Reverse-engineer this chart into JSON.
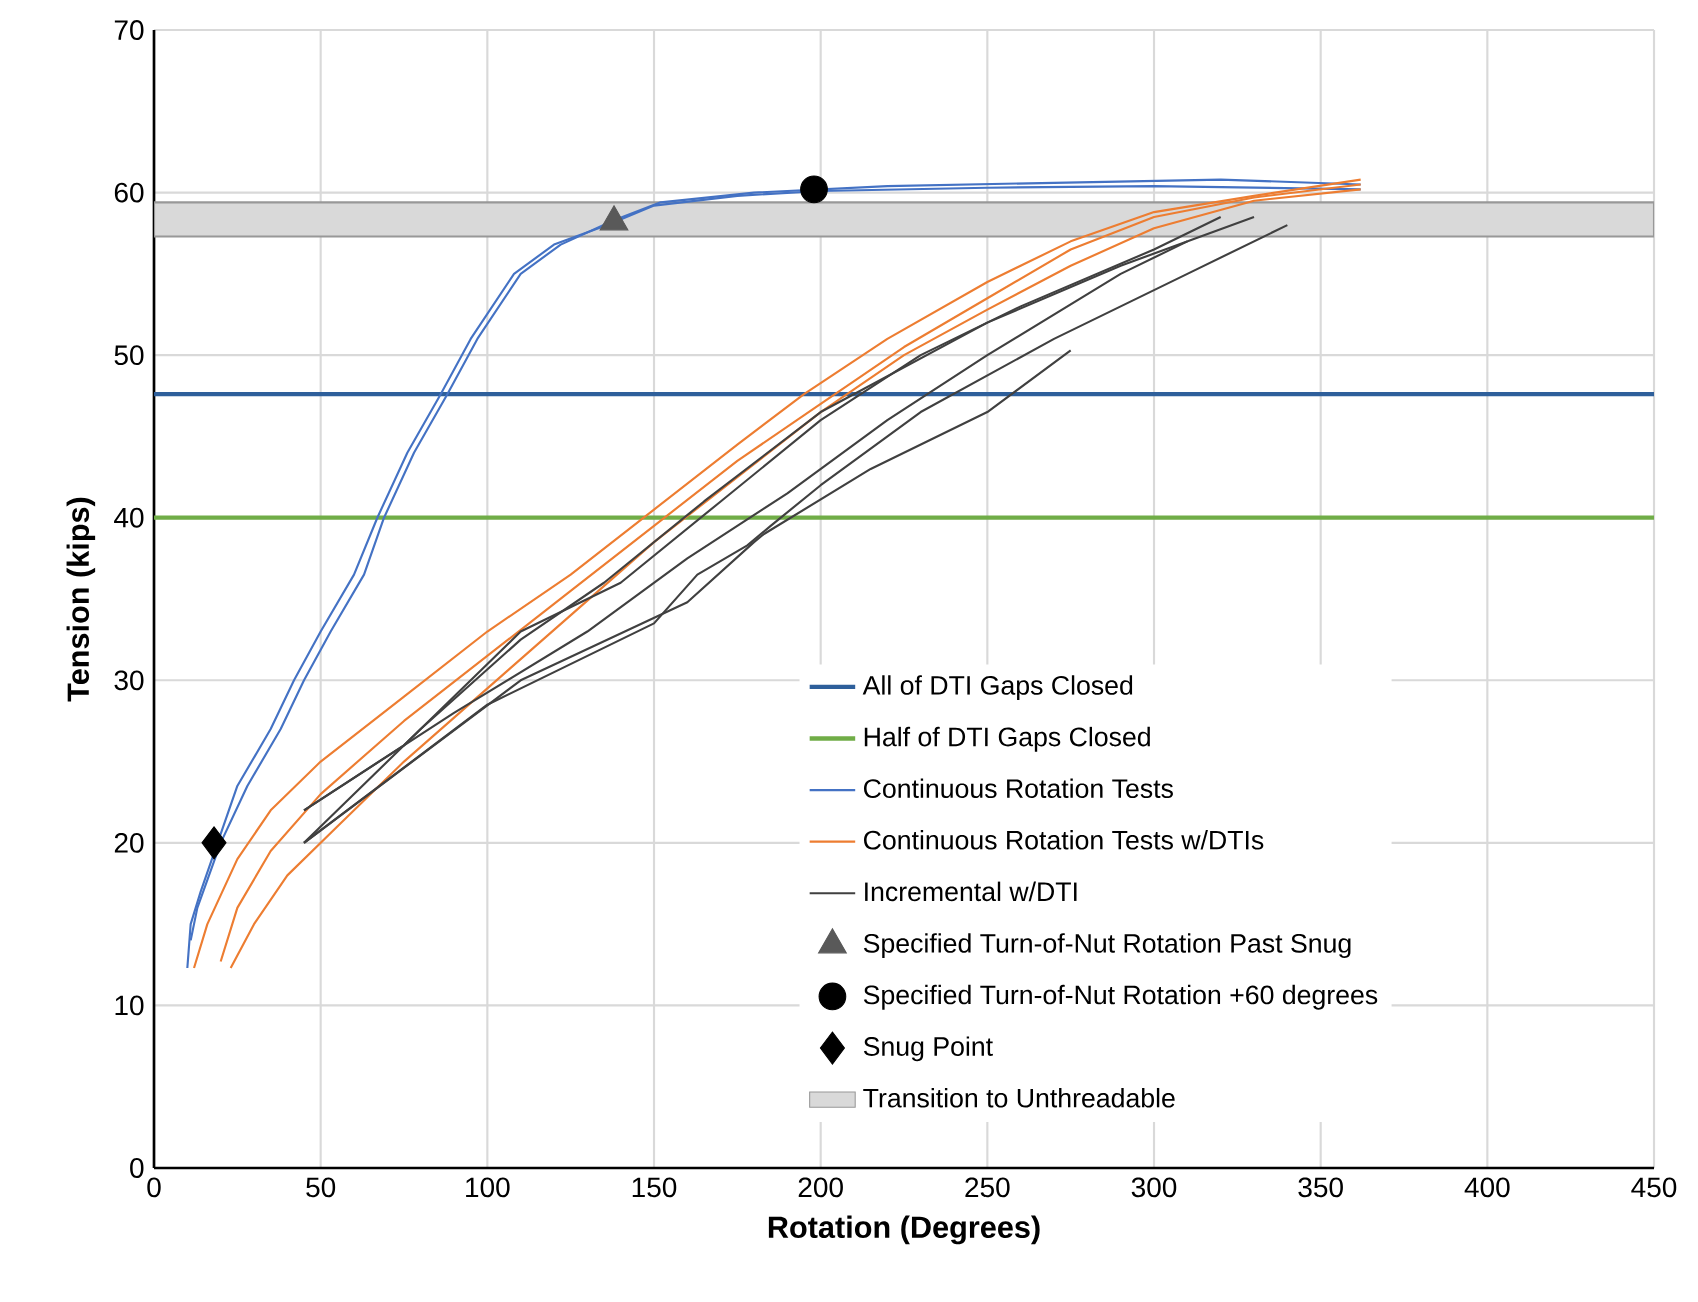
{
  "chart_data": {
    "type": "line",
    "xlabel": "Rotation (Degrees)",
    "ylabel": "Tension (kips)",
    "xlim": [
      0,
      450
    ],
    "ylim": [
      0,
      70
    ],
    "xticks": [
      0,
      50,
      100,
      150,
      200,
      250,
      300,
      350,
      400,
      450
    ],
    "yticks": [
      0,
      10,
      20,
      30,
      40,
      50,
      60,
      70
    ],
    "grid": true,
    "legend": "bottom right",
    "marker": "none",
    "ref_lines": [
      {
        "axis": "y",
        "value": 47.6,
        "label": "All of DTI Gaps Closed",
        "color": "#2e5f9b"
      },
      {
        "axis": "y",
        "value": 40,
        "label": "Half of DTI Gaps Closed",
        "color": "#70ad47"
      }
    ],
    "series": [
      {
        "name": "Continuous Rotation Tests",
        "color": "#4472c4",
        "x": [
          10,
          11,
          14,
          25,
          35,
          42,
          50,
          60,
          67,
          76,
          86,
          95,
          108,
          120,
          136,
          150,
          175,
          200,
          250,
          300,
          362
        ],
        "values": [
          12.3,
          15,
          17,
          23.5,
          27,
          30,
          33,
          36.5,
          40,
          44,
          47.6,
          51,
          55,
          56.8,
          58,
          59.2,
          59.8,
          60.1,
          60.3,
          60.4,
          60.2
        ]
      },
      {
        "color": "#4472c4",
        "x": [
          11,
          13,
          20,
          28,
          38,
          45,
          53,
          63,
          69,
          78,
          88,
          97,
          110,
          122,
          138,
          152,
          180,
          220,
          270,
          320,
          362
        ],
        "values": [
          14,
          16,
          20,
          23.5,
          27,
          30,
          33,
          36.5,
          40,
          44,
          47.6,
          51,
          55,
          56.8,
          58.3,
          59.4,
          60,
          60.4,
          60.6,
          60.8,
          60.5
        ]
      },
      {
        "name": "Continuous Rotation Tests w/DTIs",
        "color": "#ed7d31",
        "x": [
          12,
          16,
          25,
          35,
          50,
          75,
          100,
          125,
          150,
          175,
          195,
          220,
          250,
          275,
          300,
          330,
          362
        ],
        "values": [
          12.3,
          15,
          19,
          22,
          25,
          29,
          33,
          36.5,
          40.5,
          44.5,
          47.6,
          51,
          54.5,
          57,
          58.8,
          59.8,
          60.8
        ]
      },
      {
        "color": "#ed7d31",
        "x": [
          20,
          25,
          35,
          50,
          75,
          100,
          125,
          150,
          175,
          200,
          225,
          250,
          275,
          300,
          330,
          362
        ],
        "values": [
          12.7,
          16,
          19.5,
          23,
          27.5,
          31.5,
          35.5,
          39.5,
          43.5,
          47,
          50.5,
          53.5,
          56.5,
          58.5,
          59.7,
          60.5
        ]
      },
      {
        "color": "#ed7d31",
        "x": [
          23,
          30,
          40,
          55,
          75,
          100,
          125,
          150,
          175,
          200,
          225,
          250,
          275,
          300,
          330,
          362
        ],
        "values": [
          12.3,
          15,
          18,
          21,
          25,
          29.5,
          34,
          38.5,
          42.5,
          46.5,
          50,
          52.8,
          55.5,
          57.8,
          59.5,
          60.2
        ]
      },
      {
        "name": "Incremental w/DTI",
        "color": "#404040",
        "x": [
          45,
          75,
          110,
          140,
          170,
          200,
          230,
          260,
          300,
          320
        ],
        "values": [
          22,
          26,
          33,
          36,
          41,
          46,
          50,
          53,
          56.5,
          58.5
        ]
      },
      {
        "color": "#404040",
        "x": [
          45,
          80,
          110,
          135,
          165,
          200,
          250,
          290,
          330
        ],
        "values": [
          20,
          27,
          32.5,
          36,
          41,
          46.5,
          52,
          55.5,
          58.5
        ]
      },
      {
        "color": "#404040",
        "x": [
          45,
          100,
          150,
          163,
          178,
          185,
          200,
          230,
          270,
          310,
          340
        ],
        "values": [
          20,
          28.5,
          33.5,
          36.5,
          38.3,
          39.5,
          42,
          46.5,
          51,
          55,
          58
        ]
      },
      {
        "color": "#404040",
        "x": [
          45,
          110,
          160,
          180,
          183,
          215,
          250,
          275
        ],
        "values": [
          20,
          30,
          34.8,
          38.5,
          39,
          43,
          46.5,
          50.3
        ]
      },
      {
        "color": "#404040",
        "x": [
          45,
          90,
          130,
          160,
          190,
          220,
          250,
          290,
          310
        ],
        "values": [
          22,
          28,
          33,
          37.5,
          41.5,
          46,
          50,
          55,
          57
        ]
      },
      {
        "name": "Specified Turn-of-Nut Rotation Past Snug",
        "type": "scatter",
        "marker": "triangle",
        "color": "#595959",
        "x": [
          138
        ],
        "values": [
          58.2
        ]
      },
      {
        "name": "Specified Turn-of-Nut Rotation +60 degrees",
        "type": "scatter",
        "marker": "circle",
        "color": "#000000",
        "x": [
          198
        ],
        "values": [
          60.2
        ]
      },
      {
        "name": "Snug Point",
        "type": "scatter",
        "marker": "diamond",
        "color": "#000000",
        "x": [
          18
        ],
        "values": [
          20
        ]
      }
    ],
    "bands": [
      {
        "axis": "y",
        "from": 57.3,
        "to": 59.4,
        "label": "Transition to Unthreadable",
        "color": "#d9d9d9"
      }
    ]
  }
}
